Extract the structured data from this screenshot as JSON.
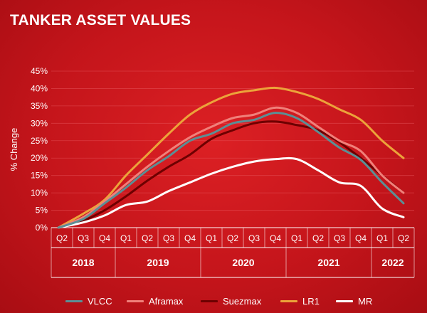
{
  "header": {
    "title": "TANKER ASSET VALUES"
  },
  "colors": {
    "VLCC": "#5b8f95",
    "Aframax": "#f0807a",
    "Suezmax": "#6e0000",
    "LR1": "#eca33a",
    "MR": "#ffffff"
  },
  "chart_data": {
    "type": "line",
    "title": "TANKER ASSET VALUES",
    "xlabel": "",
    "ylabel": "% Change",
    "ylim": [
      0,
      45
    ],
    "yticks": [
      0,
      5,
      10,
      15,
      20,
      25,
      30,
      35,
      40,
      45
    ],
    "ytick_labels": [
      "0%",
      "5%",
      "10%",
      "15%",
      "20%",
      "25%",
      "30%",
      "35%",
      "40%",
      "45%"
    ],
    "categories": [
      "Q2",
      "Q3",
      "Q4",
      "Q1",
      "Q2",
      "Q3",
      "Q4",
      "Q1",
      "Q2",
      "Q3",
      "Q4",
      "Q1",
      "Q2",
      "Q3",
      "Q4",
      "Q1",
      "Q2"
    ],
    "year_groups": [
      {
        "label": "2018",
        "start": 0,
        "end": 2
      },
      {
        "label": "2019",
        "start": 3,
        "end": 6
      },
      {
        "label": "2020",
        "start": 7,
        "end": 10
      },
      {
        "label": "2021",
        "start": 11,
        "end": 14
      },
      {
        "label": "2022",
        "start": 15,
        "end": 16
      }
    ],
    "legend_position": "bottom",
    "series": [
      {
        "name": "VLCC",
        "values": [
          0,
          2.5,
          7,
          11.5,
          16.5,
          20.5,
          25,
          27,
          30,
          31,
          33,
          31.5,
          27.5,
          23,
          19.5,
          13,
          7
        ]
      },
      {
        "name": "Aframax",
        "values": [
          0,
          3,
          7.5,
          12.5,
          17.5,
          22,
          26,
          29,
          31.5,
          32.5,
          34.5,
          33,
          29,
          25,
          22,
          15,
          10
        ]
      },
      {
        "name": "Suezmax",
        "values": [
          0,
          2,
          5,
          9,
          13.5,
          17.5,
          21,
          25.5,
          28,
          30,
          30.5,
          29.5,
          28,
          24.5,
          20,
          15,
          10
        ]
      },
      {
        "name": "LR1",
        "values": [
          0,
          4,
          8,
          15,
          21,
          27,
          32.5,
          36,
          38.5,
          39.5,
          40.2,
          39,
          37,
          34,
          31,
          25,
          20
        ]
      },
      {
        "name": "MR",
        "values": [
          0,
          1.5,
          3.5,
          6.5,
          7.5,
          10.5,
          13,
          15.5,
          17.5,
          19,
          19.7,
          19.7,
          16.5,
          13,
          12,
          5.5,
          3
        ]
      }
    ]
  }
}
